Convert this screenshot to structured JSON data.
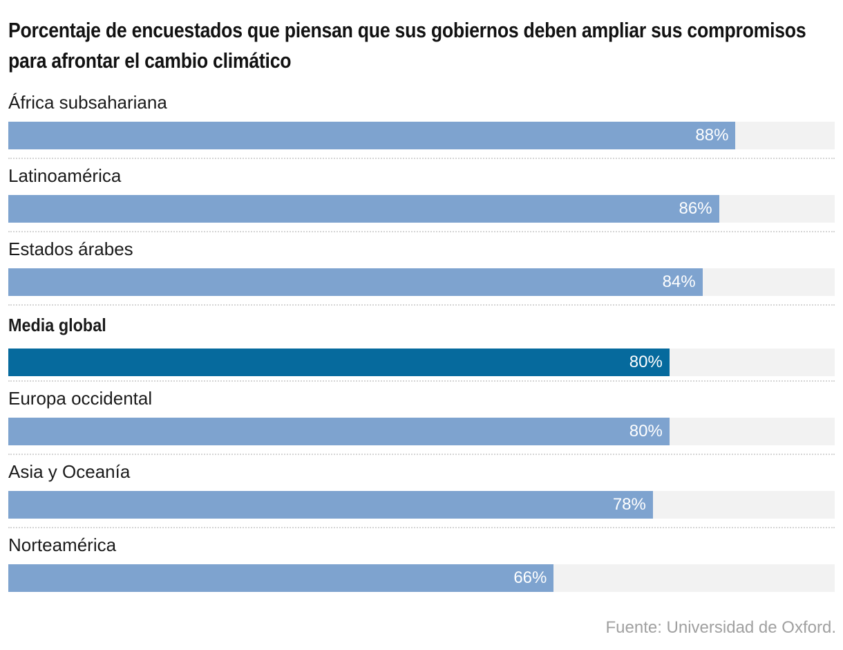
{
  "chart_data": {
    "type": "bar",
    "orientation": "horizontal",
    "title": "Porcentaje de encuestados que piensan que sus gobiernos deben ampliar sus compromisos para afrontar el cambio climático",
    "categories": [
      "África subsahariana",
      "Latinoamérica",
      "Estados árabes",
      "Media global",
      "Europa occidental",
      "Asia y Oceanía",
      "Norteamérica"
    ],
    "values": [
      88,
      86,
      84,
      80,
      80,
      78,
      66
    ],
    "value_labels": [
      "88%",
      "86%",
      "84%",
      "80%",
      "80%",
      "78%",
      "66%"
    ],
    "highlighted": "Media global",
    "unit": "%",
    "xlim": [
      0,
      100
    ],
    "xlabel": "",
    "ylabel": "",
    "grid": false,
    "source": "Fuente: Universidad de Oxford."
  },
  "colors": {
    "bar": "#7ea3cf",
    "highlight_bar": "#066a9d",
    "track": "#f2f2f2",
    "source_text": "#a0a0a0"
  }
}
